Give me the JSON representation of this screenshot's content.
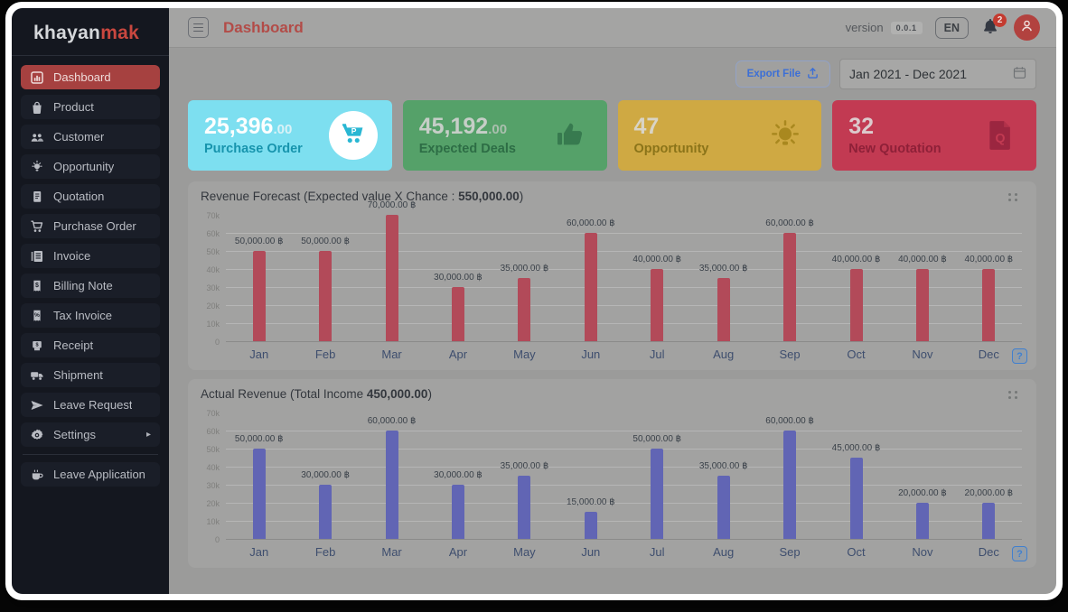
{
  "sidebar": {
    "logo_part1": "khayan",
    "logo_part2": "mak",
    "items": [
      {
        "label": "Dashboard",
        "icon": "dashboard-icon",
        "active": true
      },
      {
        "label": "Product",
        "icon": "shopping-bag-icon"
      },
      {
        "label": "Customer",
        "icon": "users-icon"
      },
      {
        "label": "Opportunity",
        "icon": "lightbulb-icon"
      },
      {
        "label": "Quotation",
        "icon": "quotation-doc-icon"
      },
      {
        "label": "Purchase Order",
        "icon": "cart-icon"
      },
      {
        "label": "Invoice",
        "icon": "invoice-icon"
      },
      {
        "label": "Billing Note",
        "icon": "billing-note-icon"
      },
      {
        "label": "Tax Invoice",
        "icon": "tax-invoice-icon"
      },
      {
        "label": "Receipt",
        "icon": "receipt-icon"
      },
      {
        "label": "Shipment",
        "icon": "truck-icon"
      },
      {
        "label": "Leave Request",
        "icon": "plane-icon"
      },
      {
        "label": "Settings",
        "icon": "gear-icon",
        "has_submenu": true
      },
      {
        "label": "Leave Application",
        "icon": "coffee-icon",
        "separated": true
      }
    ]
  },
  "topbar": {
    "title": "Dashboard",
    "version_label": "version",
    "version_value": "0.0.1",
    "language": "EN",
    "notifications_count": "2"
  },
  "controls": {
    "export_label": "Export File",
    "date_range": "Jan 2021 - Dec 2021"
  },
  "stat_cards": [
    {
      "value_int": "25,396",
      "value_dec": ".00",
      "label": "Purchase Order",
      "icon": "cart-p-icon",
      "icon_letter": "P",
      "bg": "#7ddff0",
      "value_color": "#fdfefe",
      "dec_color": "#d9f2f7",
      "label_color": "#1794ad",
      "icon_color": "#29b7d3",
      "icon_bg": "#ffffff"
    },
    {
      "value_int": "45,192",
      "value_dec": ".00",
      "label": "Expected Deals",
      "icon": "thumbs-up-icon",
      "bg": "#55a169",
      "value_color": "#c6cec7",
      "dec_color": "#aabfae",
      "label_color": "#2d6d45",
      "icon_color": "#377a4f"
    },
    {
      "value_int": "47",
      "value_dec": "",
      "label": "Opportunity",
      "icon": "lightbulb-rays-icon",
      "bg": "#cfa943",
      "value_color": "#d9d4c6",
      "dec_color": "#d9d4c6",
      "label_color": "#8b7419",
      "icon_color": "#a9881f"
    },
    {
      "value_int": "32",
      "value_dec": "",
      "label": "New Quotation",
      "icon": "quotation-q-icon",
      "icon_letter": "Q",
      "bg": "#c23a52",
      "value_color": "#dccacd",
      "dec_color": "#dccacd",
      "label_color": "#8e2038",
      "icon_color": "#9b2640"
    }
  ],
  "chart_data": [
    {
      "type": "bar",
      "title_prefix": "Revenue Forecast (Expected value X Chance : ",
      "title_bold": "550,000.00",
      "title_suffix": ")",
      "categories": [
        "Jan",
        "Feb",
        "Mar",
        "Apr",
        "May",
        "Jun",
        "Jul",
        "Aug",
        "Sep",
        "Oct",
        "Nov",
        "Dec"
      ],
      "values": [
        50000,
        50000,
        70000,
        30000,
        35000,
        60000,
        40000,
        35000,
        60000,
        40000,
        40000,
        40000
      ],
      "value_labels": [
        "50,000.00 ฿",
        "50,000.00 ฿",
        "70,000.00 ฿",
        "30,000.00 ฿",
        "35,000.00 ฿",
        "60,000.00 ฿",
        "40,000.00 ฿",
        "35,000.00 ฿",
        "60,000.00 ฿",
        "40,000.00 ฿",
        "40,000.00 ฿",
        "40,000.00 ฿"
      ],
      "yticks": [
        "0",
        "10k",
        "20k",
        "30k",
        "40k",
        "50k",
        "60k",
        "70k"
      ],
      "ymax": 70000,
      "bar_color": "#b24a59",
      "grid": true,
      "help_glyph": "?"
    },
    {
      "type": "bar",
      "title_prefix": "Actual Revenue (Total Income ",
      "title_bold": "450,000.00",
      "title_suffix": ")",
      "categories": [
        "Jan",
        "Feb",
        "Mar",
        "Apr",
        "May",
        "Jun",
        "Jul",
        "Aug",
        "Sep",
        "Oct",
        "Nov",
        "Dec"
      ],
      "values": [
        50000,
        30000,
        60000,
        30000,
        35000,
        15000,
        50000,
        35000,
        60000,
        45000,
        20000,
        20000
      ],
      "value_labels": [
        "50,000.00 ฿",
        "30,000.00 ฿",
        "60,000.00 ฿",
        "30,000.00 ฿",
        "35,000.00 ฿",
        "15,000.00 ฿",
        "50,000.00 ฿",
        "35,000.00 ฿",
        "60,000.00 ฿",
        "45,000.00 ฿",
        "20,000.00 ฿",
        "20,000.00 ฿"
      ],
      "yticks": [
        "0",
        "10k",
        "20k",
        "30k",
        "40k",
        "50k",
        "60k",
        "70k"
      ],
      "ymax": 70000,
      "bar_color": "#6165b4",
      "grid": true,
      "help_glyph": "?"
    }
  ]
}
